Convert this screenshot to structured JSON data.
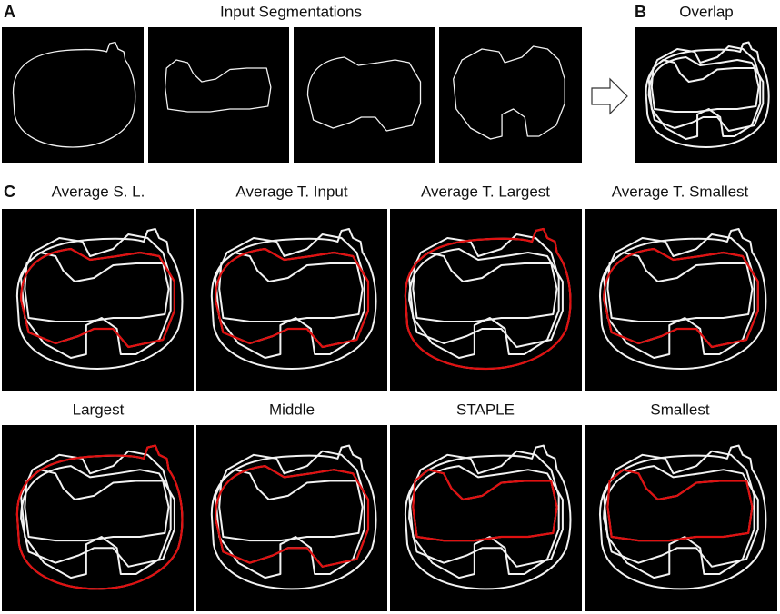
{
  "panel_a": {
    "label": "A",
    "title": "Input Segmentations"
  },
  "panel_b": {
    "label": "B",
    "title": "Overlap"
  },
  "panel_c": {
    "label": "C",
    "titles": [
      "Average S. L.",
      "Average T. Input",
      "Average T. Largest",
      "Average T. Smallest",
      "Largest",
      "Middle",
      "STAPLE",
      "Smallest"
    ]
  }
}
